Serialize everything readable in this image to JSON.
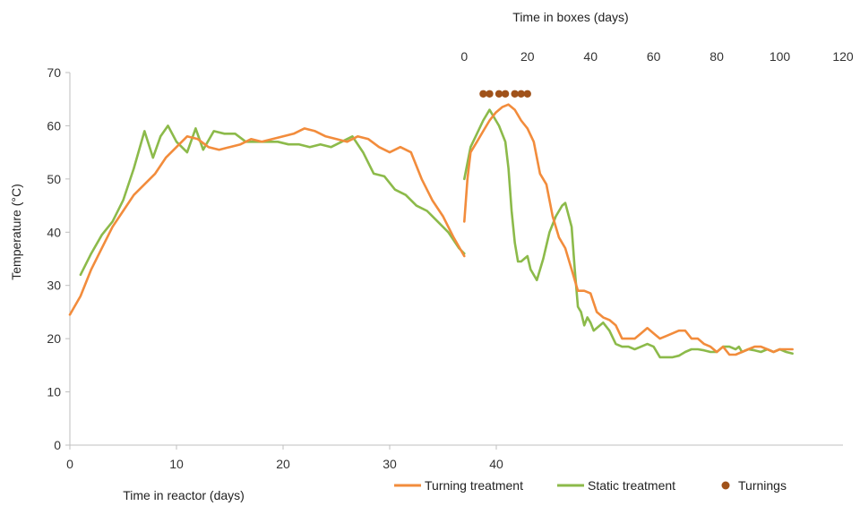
{
  "chart_data": {
    "type": "line",
    "xlabel_bottom": "Time in reactor (days)",
    "xlabel_top": "Time in boxes (days)",
    "ylabel": "Temperature (°C)",
    "ylim": [
      0,
      70
    ],
    "yticks": [
      0,
      10,
      20,
      30,
      40,
      50,
      60,
      70
    ],
    "reactor_ticks": [
      0,
      10,
      20,
      30,
      40
    ],
    "box_ticks": [
      0,
      20,
      40,
      60,
      80,
      100,
      120
    ],
    "box_xlim": [
      0,
      120
    ],
    "reactor_end_day": 37,
    "grid": false,
    "legend_position": "bottom-right",
    "colors": {
      "turning": "#f28c3c",
      "static": "#8cba4a",
      "turnings": "#a0521a",
      "axis": "#bfbfbf"
    },
    "legend": {
      "turning": "Turning treatment",
      "static": "Static treatment",
      "turnings": "Turnings"
    },
    "reactor_series": [
      {
        "name": "Turning treatment",
        "key": "turning",
        "points": [
          [
            0,
            24.5
          ],
          [
            1,
            28
          ],
          [
            2,
            33
          ],
          [
            3,
            37
          ],
          [
            4,
            41
          ],
          [
            5,
            44
          ],
          [
            6,
            47
          ],
          [
            7,
            49
          ],
          [
            8,
            51
          ],
          [
            9,
            54
          ],
          [
            10,
            56
          ],
          [
            11,
            58
          ],
          [
            12,
            57.5
          ],
          [
            13,
            56
          ],
          [
            14,
            55.5
          ],
          [
            15,
            56
          ],
          [
            16,
            56.5
          ],
          [
            17,
            57.5
          ],
          [
            18,
            57
          ],
          [
            19,
            57.5
          ],
          [
            20,
            58
          ],
          [
            21,
            58.5
          ],
          [
            22,
            59.5
          ],
          [
            23,
            59
          ],
          [
            24,
            58
          ],
          [
            25,
            57.5
          ],
          [
            26,
            57
          ],
          [
            27,
            58
          ],
          [
            28,
            57.5
          ],
          [
            29,
            56
          ],
          [
            30,
            55
          ],
          [
            31,
            56
          ],
          [
            32,
            55
          ],
          [
            33,
            50
          ],
          [
            34,
            46
          ],
          [
            35,
            43
          ],
          [
            36,
            39
          ],
          [
            37,
            35.5
          ]
        ]
      },
      {
        "name": "Static treatment",
        "key": "static",
        "points": [
          [
            1,
            32
          ],
          [
            2,
            36
          ],
          [
            3,
            39.5
          ],
          [
            4,
            42
          ],
          [
            5,
            46
          ],
          [
            6,
            52
          ],
          [
            7,
            59
          ],
          [
            7.8,
            54
          ],
          [
            8.5,
            58
          ],
          [
            9.2,
            60
          ],
          [
            10,
            57
          ],
          [
            11,
            55
          ],
          [
            11.8,
            59.5
          ],
          [
            12.5,
            55.5
          ],
          [
            13.5,
            59
          ],
          [
            14.5,
            58.5
          ],
          [
            15.5,
            58.5
          ],
          [
            16.5,
            57
          ],
          [
            17.5,
            57
          ],
          [
            18.5,
            57
          ],
          [
            19.5,
            57
          ],
          [
            20.5,
            56.5
          ],
          [
            21.5,
            56.5
          ],
          [
            22.5,
            56
          ],
          [
            23.5,
            56.5
          ],
          [
            24.5,
            56
          ],
          [
            25.5,
            57
          ],
          [
            26.5,
            58
          ],
          [
            27.5,
            55
          ],
          [
            28.5,
            51
          ],
          [
            29.5,
            50.5
          ],
          [
            30.5,
            48
          ],
          [
            31.5,
            47
          ],
          [
            32.5,
            45
          ],
          [
            33.5,
            44
          ],
          [
            34.5,
            42
          ],
          [
            35.5,
            40
          ],
          [
            36.5,
            37
          ],
          [
            37,
            36
          ]
        ]
      }
    ],
    "box_series": [
      {
        "name": "Turning treatment",
        "key": "turning",
        "points": [
          [
            0,
            42
          ],
          [
            1,
            50
          ],
          [
            2,
            55
          ],
          [
            4,
            57
          ],
          [
            6,
            59
          ],
          [
            8,
            61
          ],
          [
            10,
            62.5
          ],
          [
            12,
            63.5
          ],
          [
            14,
            64
          ],
          [
            16,
            63
          ],
          [
            18,
            61
          ],
          [
            20,
            59.5
          ],
          [
            22,
            57
          ],
          [
            24,
            51
          ],
          [
            26,
            49
          ],
          [
            28,
            43
          ],
          [
            30,
            39
          ],
          [
            32,
            37
          ],
          [
            34,
            33
          ],
          [
            36,
            29
          ],
          [
            38,
            29
          ],
          [
            40,
            28.5
          ],
          [
            42,
            25
          ],
          [
            44,
            24
          ],
          [
            46,
            23.5
          ],
          [
            48,
            22.5
          ],
          [
            50,
            20
          ],
          [
            52,
            20
          ],
          [
            54,
            20
          ],
          [
            56,
            21
          ],
          [
            58,
            22
          ],
          [
            60,
            21
          ],
          [
            62,
            20
          ],
          [
            64,
            20.5
          ],
          [
            66,
            21
          ],
          [
            68,
            21.5
          ],
          [
            70,
            21.5
          ],
          [
            72,
            20
          ],
          [
            74,
            20
          ],
          [
            76,
            19
          ],
          [
            78,
            18.5
          ],
          [
            80,
            17.5
          ],
          [
            82,
            18.5
          ],
          [
            84,
            17
          ],
          [
            86,
            17
          ],
          [
            88,
            17.5
          ],
          [
            90,
            18
          ],
          [
            92,
            18.5
          ],
          [
            94,
            18.5
          ],
          [
            96,
            18
          ],
          [
            98,
            17.5
          ],
          [
            100,
            18
          ],
          [
            102,
            18
          ],
          [
            104,
            18
          ]
        ]
      },
      {
        "name": "Static treatment",
        "key": "static",
        "points": [
          [
            0,
            50
          ],
          [
            1,
            53
          ],
          [
            2,
            56
          ],
          [
            4,
            58.5
          ],
          [
            6,
            61
          ],
          [
            8,
            63
          ],
          [
            9,
            62
          ],
          [
            11,
            60
          ],
          [
            13,
            57
          ],
          [
            14,
            52
          ],
          [
            15,
            44
          ],
          [
            16,
            38
          ],
          [
            17,
            34.5
          ],
          [
            18,
            34.5
          ],
          [
            19,
            35
          ],
          [
            20,
            35.5
          ],
          [
            21,
            33
          ],
          [
            23,
            31
          ],
          [
            25,
            35
          ],
          [
            27,
            40
          ],
          [
            29,
            43
          ],
          [
            31,
            45
          ],
          [
            32,
            45.5
          ],
          [
            34,
            41
          ],
          [
            35,
            33
          ],
          [
            36,
            26
          ],
          [
            37,
            25
          ],
          [
            38,
            22.5
          ],
          [
            39,
            24
          ],
          [
            40,
            23
          ],
          [
            41,
            21.5
          ],
          [
            42,
            22
          ],
          [
            44,
            23
          ],
          [
            46,
            21.5
          ],
          [
            48,
            19
          ],
          [
            50,
            18.5
          ],
          [
            52,
            18.5
          ],
          [
            54,
            18
          ],
          [
            56,
            18.5
          ],
          [
            58,
            19
          ],
          [
            60,
            18.5
          ],
          [
            62,
            16.5
          ],
          [
            64,
            16.5
          ],
          [
            66,
            16.5
          ],
          [
            68,
            16.8
          ],
          [
            70,
            17.5
          ],
          [
            72,
            18
          ],
          [
            74,
            18
          ],
          [
            76,
            17.8
          ],
          [
            78,
            17.5
          ],
          [
            80,
            17.5
          ],
          [
            82,
            18.5
          ],
          [
            84,
            18.5
          ],
          [
            86,
            18
          ],
          [
            87,
            18.5
          ],
          [
            88,
            17.5
          ],
          [
            90,
            18
          ],
          [
            92,
            17.8
          ],
          [
            94,
            17.5
          ],
          [
            96,
            18
          ],
          [
            98,
            17.5
          ],
          [
            100,
            18
          ],
          [
            102,
            17.5
          ],
          [
            104,
            17.2
          ]
        ]
      }
    ],
    "turning_events_boxes": [
      6,
      8,
      11,
      13,
      16,
      18,
      20
    ],
    "turning_marker_y": 66
  }
}
